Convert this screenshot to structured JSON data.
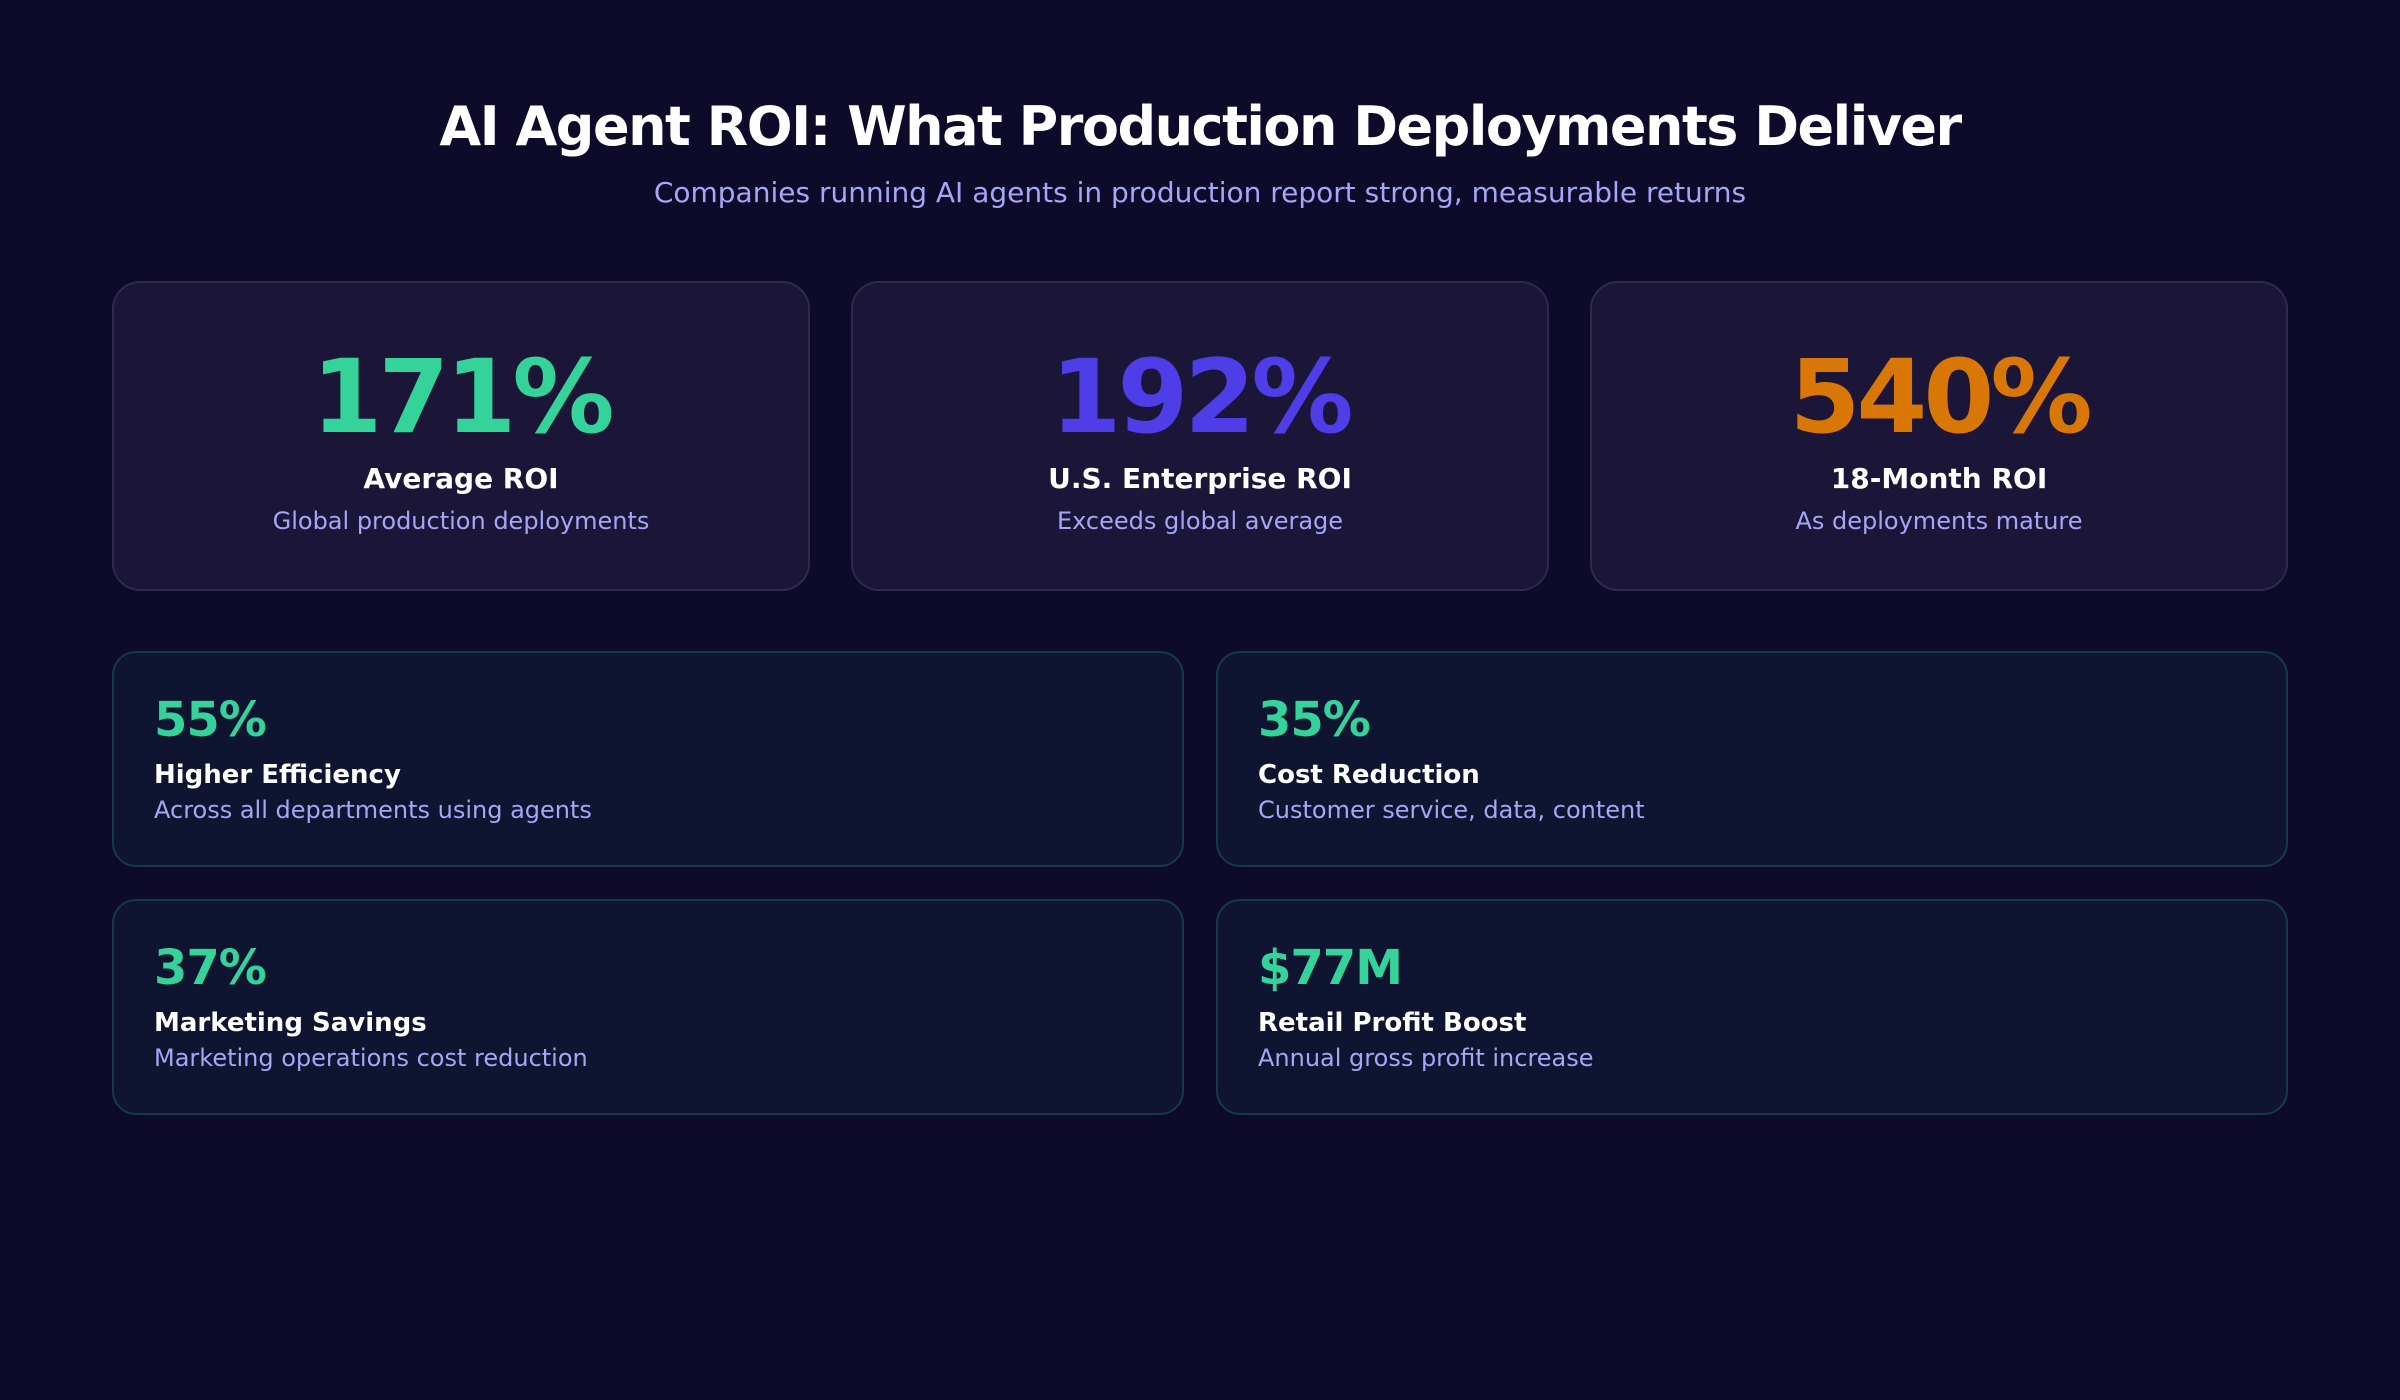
{
  "header": {
    "title": "AI Agent ROI: What Production Deployments Deliver",
    "subtitle": "Companies running AI agents in production report strong, measurable returns"
  },
  "top_cards": [
    {
      "value": "171%",
      "label": "Average ROI",
      "description": "Global production deployments",
      "color": "#34d399"
    },
    {
      "value": "192%",
      "label": "U.S. Enterprise ROI",
      "description": "Exceeds global average",
      "color": "#4f3de8"
    },
    {
      "value": "540%",
      "label": "18-Month ROI",
      "description": "As deployments mature",
      "color": "#d97706"
    }
  ],
  "stat_cards": [
    {
      "value": "55%",
      "label": "Higher Efficiency",
      "description": "Across all departments using agents"
    },
    {
      "value": "35%",
      "label": "Cost Reduction",
      "description": "Customer service, data, content"
    },
    {
      "value": "37%",
      "label": "Marketing Savings",
      "description": "Marketing operations cost reduction"
    },
    {
      "value": "$77M",
      "label": "Retail Profit Boost",
      "description": "Annual gross profit increase"
    }
  ],
  "colors": {
    "background": "#0d0a2a",
    "accent_green": "#34d399",
    "accent_indigo": "#4f3de8",
    "accent_orange": "#d97706",
    "muted_text": "#a5a6f6"
  }
}
